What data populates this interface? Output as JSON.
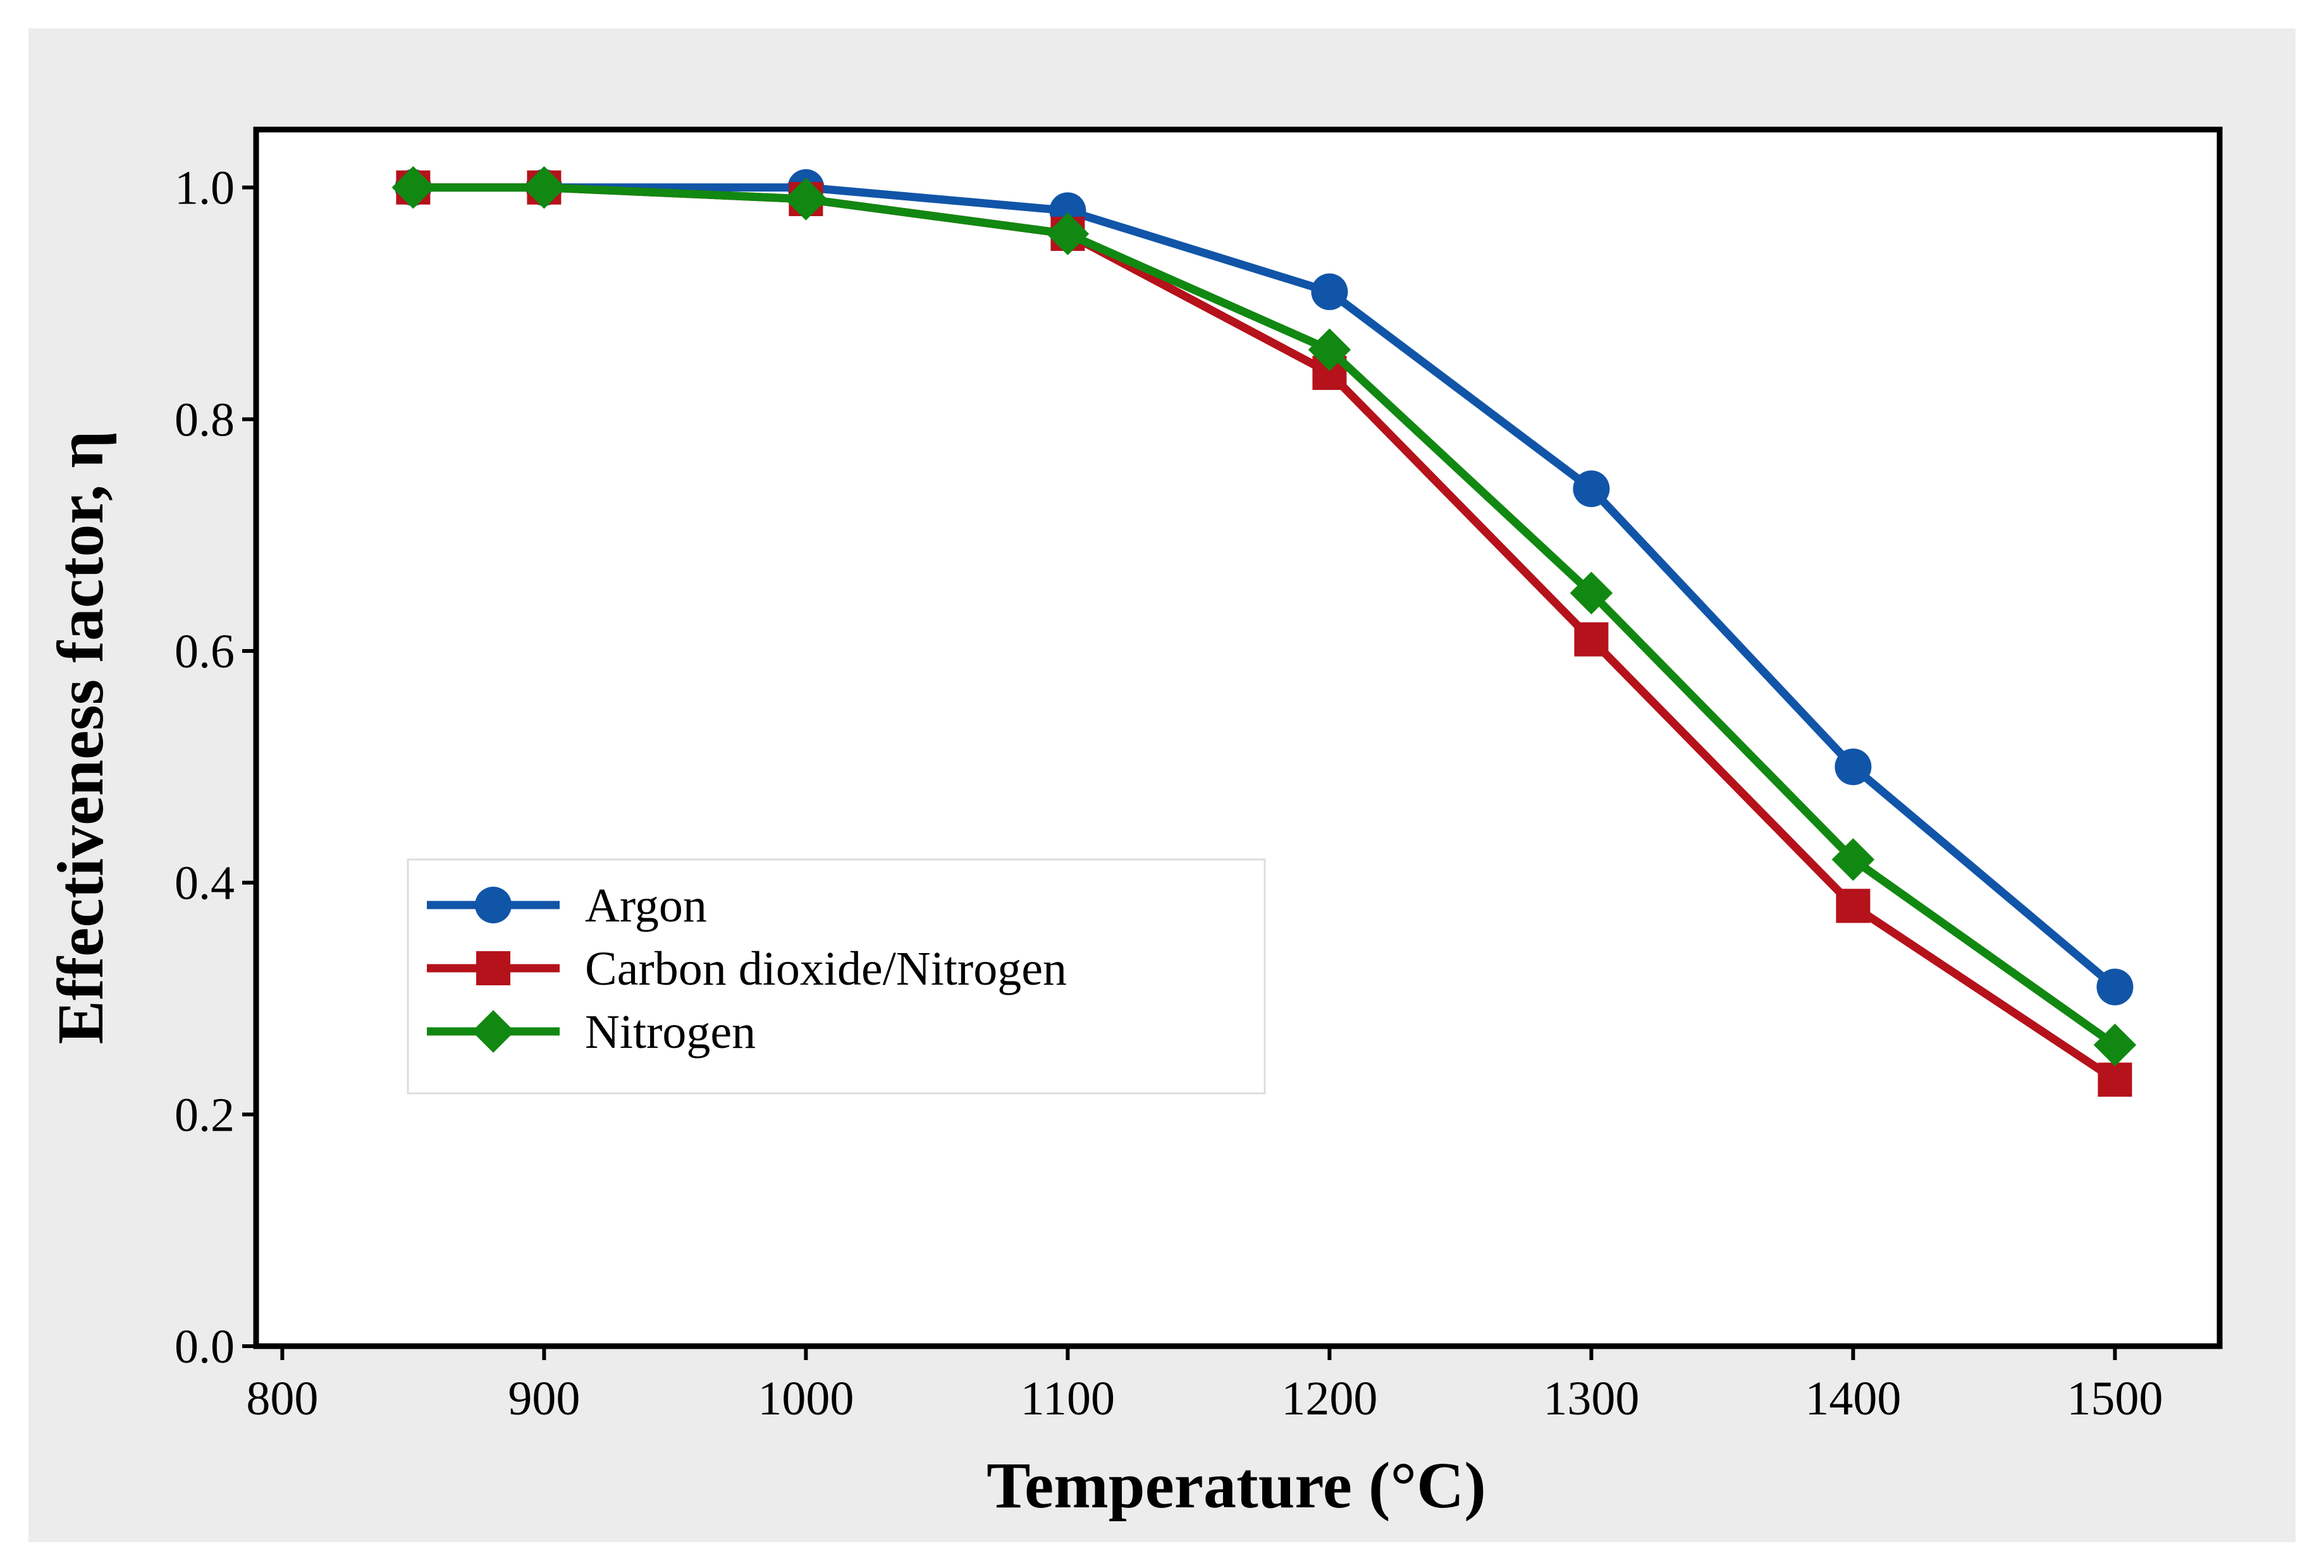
{
  "chart_data": {
    "type": "line",
    "title": "",
    "xlabel": "Temperature (°C)",
    "ylabel": "Effectiveness factor, η",
    "xlim": [
      790,
      1540
    ],
    "ylim": [
      0.0,
      1.05
    ],
    "x_ticks": [
      800,
      900,
      1000,
      1100,
      1200,
      1300,
      1400,
      1500
    ],
    "x_tick_labels": [
      "800",
      "900",
      "1000",
      "1100",
      "1200",
      "1300",
      "1400",
      "1500"
    ],
    "y_ticks": [
      0.0,
      0.2,
      0.4,
      0.6,
      0.8,
      1.0
    ],
    "y_tick_labels": [
      "0.0",
      "0.2",
      "0.4",
      "0.6",
      "0.8",
      "1.0"
    ],
    "grid": false,
    "legend_position": "center-left",
    "x": [
      850,
      900,
      1000,
      1100,
      1200,
      1300,
      1400,
      1500
    ],
    "series": [
      {
        "name": "Argon",
        "marker": "circle",
        "color": "#1155a8",
        "values": [
          1.0,
          1.0,
          1.0,
          0.98,
          0.91,
          0.74,
          0.5,
          0.31
        ]
      },
      {
        "name": "Carbon dioxide/Nitrogen",
        "marker": "square",
        "color": "#b5121b",
        "values": [
          1.0,
          1.0,
          0.99,
          0.96,
          0.84,
          0.61,
          0.38,
          0.23
        ]
      },
      {
        "name": "Nitrogen",
        "marker": "diamond",
        "color": "#118811",
        "values": [
          1.0,
          1.0,
          0.99,
          0.96,
          0.86,
          0.65,
          0.42,
          0.26
        ]
      }
    ]
  }
}
